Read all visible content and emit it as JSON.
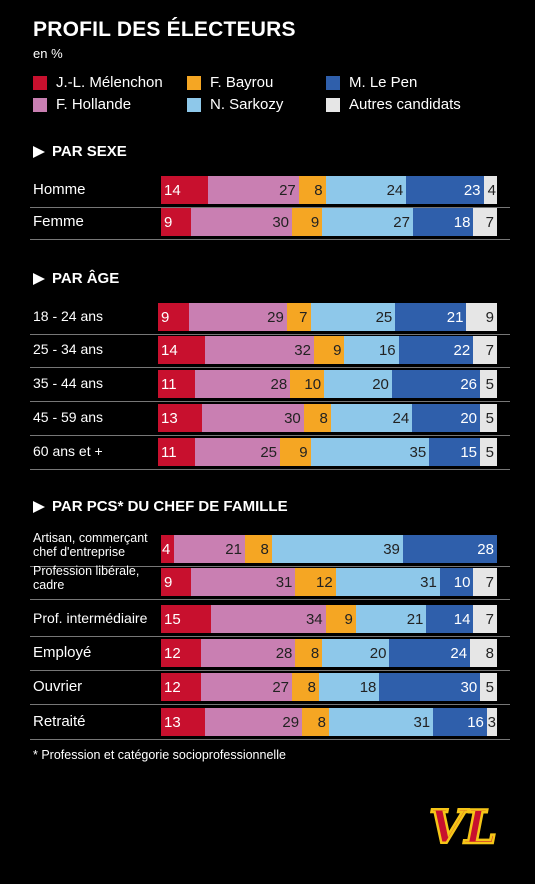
{
  "title": "PROFIL DES ÉLECTEURS",
  "subtitle": "en %",
  "logo_text": "VL",
  "footnote": "* Profession et catégorie socioprofessionnelle",
  "legend": [
    {
      "label": "J.-L. Mélenchon",
      "color": "#c8102e"
    },
    {
      "label": "F. Bayrou",
      "color": "#f5a623"
    },
    {
      "label": "M. Le Pen",
      "color": "#2f5fab"
    },
    {
      "label": "F. Hollande",
      "color": "#c97fb2"
    },
    {
      "label": "N. Sarkozy",
      "color": "#8ec8ea"
    },
    {
      "label": "Autres candidats",
      "color": "#e6e6e6"
    }
  ],
  "chart_data": {
    "type": "bar",
    "stacked": true,
    "orientation": "horizontal",
    "series_order": [
      "J.-L. Mélenchon",
      "F. Hollande",
      "F. Bayrou",
      "N. Sarkozy",
      "M. Le Pen",
      "Autres candidats"
    ],
    "sections": [
      {
        "heading": "PAR SEXE",
        "rows": [
          {
            "label": "Homme",
            "values": [
              14,
              27,
              8,
              24,
              23,
              4
            ]
          },
          {
            "label": "Femme",
            "values": [
              9,
              30,
              9,
              27,
              18,
              7
            ]
          }
        ]
      },
      {
        "heading": "PAR ÂGE",
        "rows": [
          {
            "label": "18 - 24 ans",
            "values": [
              9,
              29,
              7,
              25,
              21,
              9
            ]
          },
          {
            "label": "25 - 34 ans",
            "values": [
              14,
              32,
              9,
              16,
              22,
              7
            ]
          },
          {
            "label": "35 - 44 ans",
            "values": [
              11,
              28,
              10,
              20,
              26,
              5
            ]
          },
          {
            "label": "45 - 59 ans",
            "values": [
              13,
              30,
              8,
              24,
              20,
              5
            ]
          },
          {
            "label": "60 ans et +",
            "values": [
              11,
              25,
              9,
              35,
              15,
              5
            ]
          }
        ]
      },
      {
        "heading": "PAR PCS* DU CHEF DE FAMILLE",
        "rows": [
          {
            "label": "Artisan, commerçant chef d'entreprise",
            "values": [
              4,
              21,
              8,
              39,
              28,
              0
            ]
          },
          {
            "label": "Profession libérale, cadre",
            "values": [
              9,
              31,
              12,
              31,
              10,
              7
            ]
          },
          {
            "label": "Prof. intermédiaire",
            "values": [
              15,
              34,
              9,
              21,
              14,
              7
            ]
          },
          {
            "label": "Employé",
            "values": [
              12,
              28,
              8,
              20,
              24,
              8
            ]
          },
          {
            "label": "Ouvrier",
            "values": [
              12,
              27,
              8,
              18,
              30,
              5
            ]
          },
          {
            "label": "Retraité",
            "values": [
              13,
              29,
              8,
              31,
              16,
              3
            ]
          }
        ]
      }
    ]
  }
}
